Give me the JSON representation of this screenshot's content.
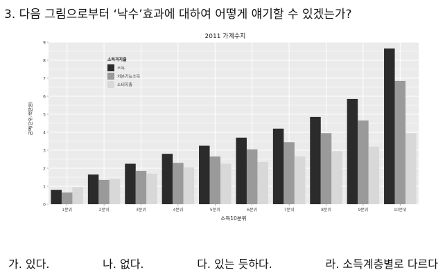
{
  "question": {
    "text": "3. 다음 그림으로부터 ‘낙수’효과에 대하여 어떻게 얘기할 수 있겠는가?"
  },
  "chart_data": {
    "type": "bar",
    "title": "2011 가계수지",
    "xlabel": "소득10분위",
    "ylabel": "금액(단위:백만원)",
    "ylim": [
      0,
      9
    ],
    "yticks": [
      0,
      1,
      2,
      3,
      4,
      5,
      6,
      7,
      8,
      9
    ],
    "grid": true,
    "legend": {
      "title": "소득과지출",
      "position": "top-left"
    },
    "categories": [
      "1분위",
      "2분위",
      "3분위",
      "4분위",
      "5분위",
      "6분위",
      "7분위",
      "8분위",
      "9분위",
      "10분위"
    ],
    "series": [
      {
        "name": "소득",
        "color": "#2b2b2b",
        "values": [
          0.8,
          1.65,
          2.25,
          2.8,
          3.25,
          3.7,
          4.2,
          4.85,
          5.85,
          8.65
        ]
      },
      {
        "name": "처분가능소득",
        "color": "#9a9a9a",
        "values": [
          0.65,
          1.35,
          1.85,
          2.3,
          2.65,
          3.05,
          3.45,
          3.95,
          4.65,
          6.85
        ]
      },
      {
        "name": "소비지출",
        "color": "#d8d8d8",
        "values": [
          0.95,
          1.4,
          1.7,
          2.05,
          2.25,
          2.35,
          2.65,
          2.95,
          3.2,
          3.95
        ]
      }
    ]
  },
  "choices": [
    {
      "label": "가. 있다."
    },
    {
      "label": "나. 없다."
    },
    {
      "label": "다. 있는 듯하다."
    },
    {
      "label": "라. 소득계층별로 다르다"
    }
  ]
}
